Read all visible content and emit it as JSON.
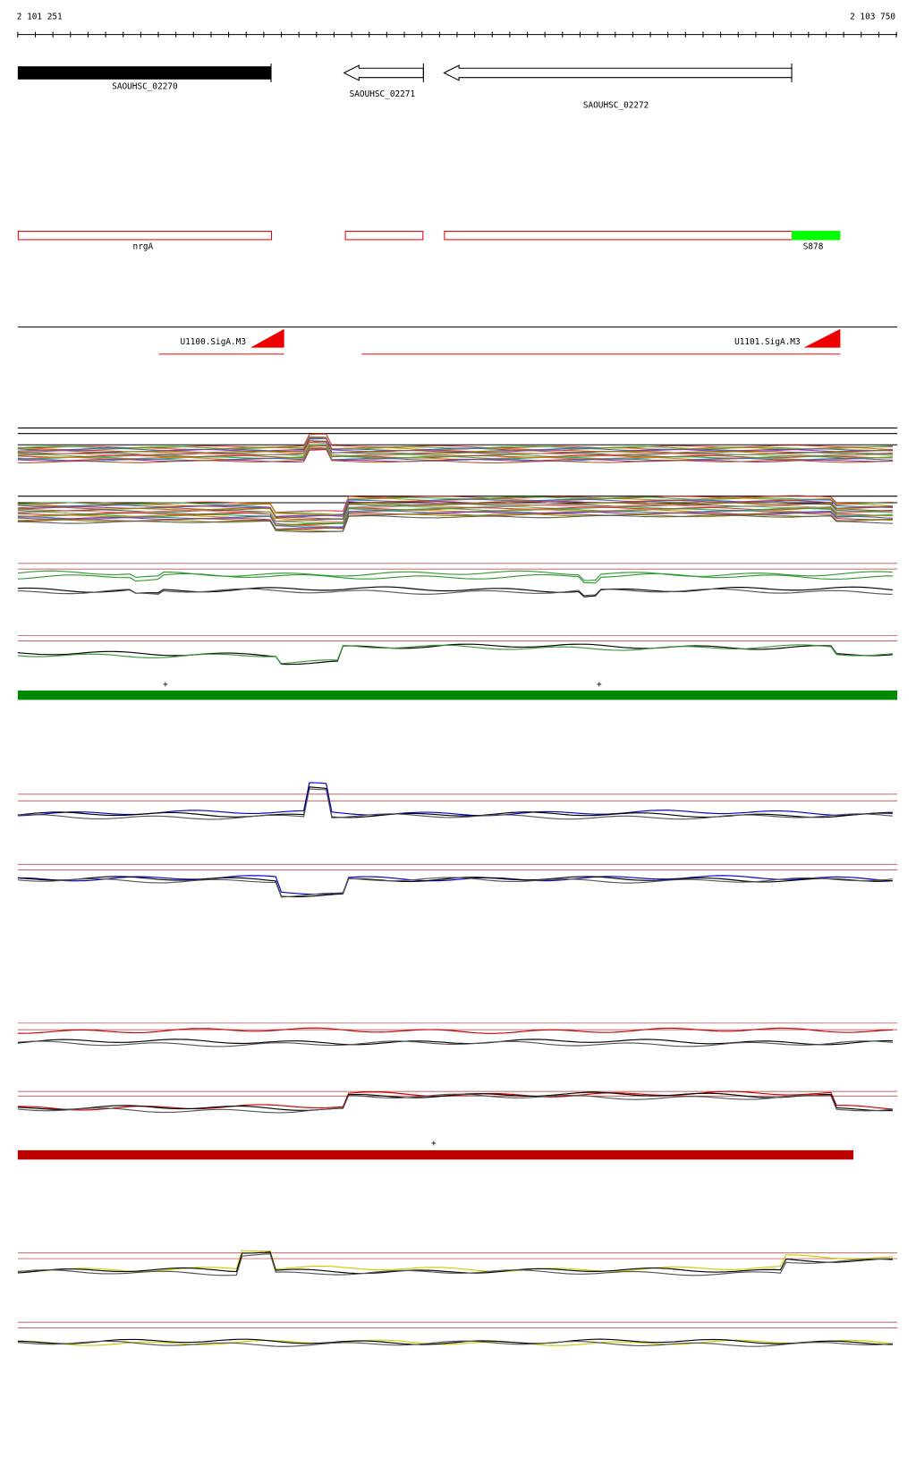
{
  "ruler": {
    "start": "2 101 251",
    "end": "2 103 750"
  },
  "genes": [
    {
      "label": "SAOUHSC_02270"
    },
    {
      "label": "SAOUHSC_02271"
    },
    {
      "label": "SAOUHSC_02272"
    }
  ],
  "features": [
    {
      "label": "nrgA"
    },
    {
      "label": "S878"
    }
  ],
  "promoters": [
    {
      "label": "U1100.SigA.M3"
    },
    {
      "label": "U1101.SigA.M3"
    }
  ],
  "green_track": {
    "marks": [
      "+",
      "+"
    ]
  },
  "red_track": {
    "marks": [
      "+"
    ]
  }
}
